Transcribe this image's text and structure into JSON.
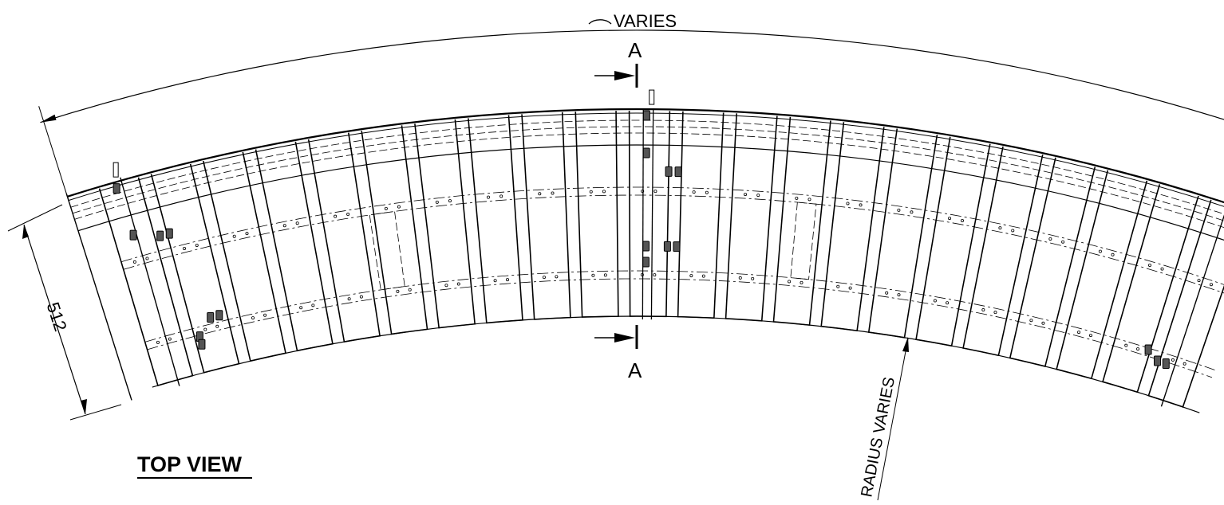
{
  "drawing": {
    "view_title": "TOP VIEW",
    "arc_dimension": {
      "symbol": "⌒",
      "text": "VARIES"
    },
    "radius_label": "RADIUS VARIES",
    "width_dimension": "512",
    "section_markers": [
      "A",
      "A"
    ]
  },
  "colors": {
    "line": "#000000",
    "hardware": "#555555",
    "background": "#ffffff"
  }
}
